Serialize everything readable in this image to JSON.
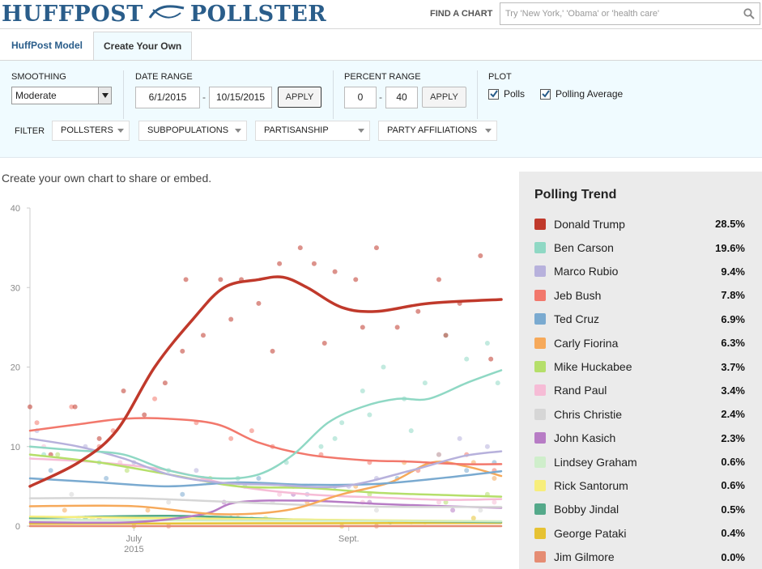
{
  "header": {
    "brand_left": "HUFFPOST",
    "brand_right": "POLLSTER",
    "find_label": "FIND A CHART",
    "search_placeholder": "Try 'New York,' 'Obama' or 'health care'"
  },
  "tabs": [
    {
      "label": "HuffPost Model",
      "active": false
    },
    {
      "label": "Create Your Own",
      "active": true
    }
  ],
  "controls": {
    "smoothing_label": "SMOOTHING",
    "smoothing_value": "Moderate",
    "date_range_label": "DATE RANGE",
    "date_start": "6/1/2015",
    "date_end": "10/15/2015",
    "date_apply": "APPLY",
    "percent_range_label": "PERCENT RANGE",
    "percent_min": "0",
    "percent_max": "40",
    "percent_apply": "APPLY",
    "plot_label": "PLOT",
    "plot_polls": "Polls",
    "plot_average": "Polling Average",
    "filter_label": "FILTER",
    "filters": [
      "POLLSTERS",
      "SUBPOPULATIONS",
      "PARTISANSHIP",
      "PARTY AFFILIATIONS"
    ]
  },
  "intro_text": "Create your own chart to share or embed.",
  "legend": {
    "title": "Polling Trend",
    "items": [
      {
        "name": "Donald Trump",
        "value": "28.5%",
        "color": "#c0392b"
      },
      {
        "name": "Ben Carson",
        "value": "19.6%",
        "color": "#8fd8c4"
      },
      {
        "name": "Marco Rubio",
        "value": "9.4%",
        "color": "#b7b1dc"
      },
      {
        "name": "Jeb Bush",
        "value": "7.8%",
        "color": "#f2786c"
      },
      {
        "name": "Ted Cruz",
        "value": "6.9%",
        "color": "#7aaad0"
      },
      {
        "name": "Carly Fiorina",
        "value": "6.3%",
        "color": "#f6a95a"
      },
      {
        "name": "Mike Huckabee",
        "value": "3.7%",
        "color": "#b5df6a"
      },
      {
        "name": "Rand Paul",
        "value": "3.4%",
        "color": "#f6bcd6"
      },
      {
        "name": "Chris Christie",
        "value": "2.4%",
        "color": "#d6d6d6"
      },
      {
        "name": "John Kasich",
        "value": "2.3%",
        "color": "#b77cc5"
      },
      {
        "name": "Lindsey Graham",
        "value": "0.6%",
        "color": "#cfeecb"
      },
      {
        "name": "Rick Santorum",
        "value": "0.6%",
        "color": "#f7ee7c"
      },
      {
        "name": "Bobby Jindal",
        "value": "0.5%",
        "color": "#54a98a"
      },
      {
        "name": "George Pataki",
        "value": "0.4%",
        "color": "#e6c233"
      },
      {
        "name": "Jim Gilmore",
        "value": "0.0%",
        "color": "#e58c73"
      }
    ]
  },
  "chart_data": {
    "type": "line",
    "ylim": [
      0,
      40
    ],
    "yticks": [
      0,
      10,
      20,
      30,
      40
    ],
    "xlim": [
      "2015-06-01",
      "2015-10-15"
    ],
    "xticks": [
      {
        "label": "July",
        "sub": "2015",
        "date": "2015-07-01"
      },
      {
        "label": "Sept.",
        "sub": "",
        "date": "2015-09-01"
      }
    ],
    "series": [
      {
        "name": "Donald Trump",
        "color": "#c0392b",
        "trend": [
          [
            0,
            5
          ],
          [
            14,
            8
          ],
          [
            25,
            12
          ],
          [
            36,
            20
          ],
          [
            47,
            26
          ],
          [
            56,
            30
          ],
          [
            66,
            31
          ],
          [
            73,
            31.3
          ],
          [
            80,
            30
          ],
          [
            90,
            27.5
          ],
          [
            100,
            27
          ],
          [
            115,
            28
          ],
          [
            136,
            28.5
          ]
        ],
        "polls": [
          [
            0,
            15
          ],
          [
            6,
            9
          ],
          [
            13,
            15
          ],
          [
            20,
            11
          ],
          [
            27,
            17
          ],
          [
            33,
            14
          ],
          [
            39,
            18
          ],
          [
            45,
            31
          ],
          [
            50,
            24
          ],
          [
            55,
            31
          ],
          [
            61,
            31
          ],
          [
            66,
            28
          ],
          [
            72,
            33
          ],
          [
            78,
            35
          ],
          [
            82,
            33
          ],
          [
            88,
            32
          ],
          [
            94,
            31
          ],
          [
            100,
            35
          ],
          [
            106,
            25
          ],
          [
            112,
            27
          ],
          [
            118,
            31
          ],
          [
            124,
            28
          ],
          [
            130,
            34
          ],
          [
            133,
            21
          ],
          [
            120,
            24
          ],
          [
            96,
            25
          ],
          [
            85,
            23
          ],
          [
            70,
            22
          ],
          [
            58,
            26
          ],
          [
            44,
            22
          ]
        ]
      },
      {
        "name": "Ben Carson",
        "color": "#8fd8c4",
        "trend": [
          [
            0,
            10
          ],
          [
            14,
            9.5
          ],
          [
            27,
            9
          ],
          [
            40,
            7
          ],
          [
            54,
            6
          ],
          [
            66,
            6.5
          ],
          [
            76,
            9
          ],
          [
            86,
            13
          ],
          [
            96,
            15
          ],
          [
            106,
            16
          ],
          [
            115,
            16
          ],
          [
            126,
            18
          ],
          [
            136,
            19.6
          ]
        ],
        "polls": [
          [
            4,
            9
          ],
          [
            20,
            8
          ],
          [
            40,
            7
          ],
          [
            60,
            6
          ],
          [
            74,
            8
          ],
          [
            84,
            10
          ],
          [
            90,
            13
          ],
          [
            96,
            17
          ],
          [
            102,
            20
          ],
          [
            108,
            16
          ],
          [
            114,
            18
          ],
          [
            120,
            24
          ],
          [
            126,
            21
          ],
          [
            132,
            23
          ],
          [
            135,
            18
          ],
          [
            98,
            14
          ],
          [
            88,
            11
          ],
          [
            110,
            12
          ]
        ]
      },
      {
        "name": "Marco Rubio",
        "color": "#b7b1dc",
        "trend": [
          [
            0,
            11
          ],
          [
            14,
            10
          ],
          [
            27,
            8.5
          ],
          [
            40,
            6.5
          ],
          [
            54,
            5.5
          ],
          [
            70,
            5.2
          ],
          [
            90,
            5
          ],
          [
            110,
            7
          ],
          [
            125,
            8.8
          ],
          [
            136,
            9.4
          ]
        ],
        "polls": [
          [
            2,
            12
          ],
          [
            16,
            10
          ],
          [
            30,
            8
          ],
          [
            48,
            7
          ],
          [
            62,
            5
          ],
          [
            80,
            4
          ],
          [
            100,
            6
          ],
          [
            118,
            9
          ],
          [
            132,
            10
          ],
          [
            124,
            11
          ],
          [
            92,
            5
          ]
        ]
      },
      {
        "name": "Jeb Bush",
        "color": "#f2786c",
        "trend": [
          [
            0,
            12
          ],
          [
            14,
            12.8
          ],
          [
            27,
            13.5
          ],
          [
            40,
            13.5
          ],
          [
            54,
            12.8
          ],
          [
            66,
            10.5
          ],
          [
            80,
            9
          ],
          [
            96,
            8.3
          ],
          [
            110,
            8.1
          ],
          [
            124,
            7.8
          ],
          [
            136,
            7.8
          ]
        ],
        "polls": [
          [
            2,
            13
          ],
          [
            12,
            15
          ],
          [
            24,
            12
          ],
          [
            36,
            16
          ],
          [
            48,
            13
          ],
          [
            58,
            11
          ],
          [
            70,
            10
          ],
          [
            84,
            9
          ],
          [
            98,
            8
          ],
          [
            112,
            7
          ],
          [
            126,
            9
          ],
          [
            134,
            7
          ],
          [
            20,
            10
          ],
          [
            64,
            12
          ]
        ]
      },
      {
        "name": "Ted Cruz",
        "color": "#7aaad0",
        "trend": [
          [
            0,
            6
          ],
          [
            20,
            5.5
          ],
          [
            40,
            5
          ],
          [
            60,
            5.5
          ],
          [
            80,
            5.2
          ],
          [
            100,
            5.3
          ],
          [
            120,
            6.1
          ],
          [
            136,
            6.9
          ]
        ],
        "polls": [
          [
            6,
            7
          ],
          [
            22,
            6
          ],
          [
            44,
            4
          ],
          [
            66,
            6
          ],
          [
            88,
            5
          ],
          [
            106,
            6
          ],
          [
            126,
            7
          ],
          [
            134,
            8
          ]
        ]
      },
      {
        "name": "Carly Fiorina",
        "color": "#f6a95a",
        "trend": [
          [
            0,
            2.5
          ],
          [
            30,
            2.5
          ],
          [
            54,
            1.5
          ],
          [
            74,
            2
          ],
          [
            90,
            4
          ],
          [
            104,
            5.5
          ],
          [
            116,
            8
          ],
          [
            126,
            7.5
          ],
          [
            136,
            6.3
          ]
        ],
        "polls": [
          [
            10,
            2
          ],
          [
            34,
            2
          ],
          [
            60,
            1
          ],
          [
            80,
            3
          ],
          [
            94,
            5
          ],
          [
            108,
            8
          ],
          [
            118,
            9
          ],
          [
            128,
            8
          ],
          [
            134,
            6
          ]
        ]
      },
      {
        "name": "Mike Huckabee",
        "color": "#b5df6a",
        "trend": [
          [
            0,
            9
          ],
          [
            20,
            8
          ],
          [
            40,
            6.5
          ],
          [
            60,
            5
          ],
          [
            80,
            4.8
          ],
          [
            100,
            4.2
          ],
          [
            120,
            3.9
          ],
          [
            136,
            3.7
          ]
        ],
        "polls": [
          [
            8,
            9
          ],
          [
            28,
            7
          ],
          [
            52,
            6
          ],
          [
            76,
            5
          ],
          [
            98,
            4
          ],
          [
            120,
            3
          ],
          [
            132,
            4
          ]
        ]
      },
      {
        "name": "Rand Paul",
        "color": "#f6bcd6",
        "trend": [
          [
            0,
            8.5
          ],
          [
            20,
            8
          ],
          [
            40,
            7
          ],
          [
            60,
            5
          ],
          [
            80,
            4
          ],
          [
            100,
            3.6
          ],
          [
            120,
            3.3
          ],
          [
            136,
            3.4
          ]
        ],
        "polls": [
          [
            4,
            10
          ],
          [
            26,
            8
          ],
          [
            50,
            6
          ],
          [
            72,
            4
          ],
          [
            96,
            3
          ],
          [
            118,
            3
          ],
          [
            134,
            3
          ]
        ]
      },
      {
        "name": "Chris Christie",
        "color": "#d6d6d6",
        "trend": [
          [
            0,
            3.5
          ],
          [
            30,
            3.5
          ],
          [
            60,
            3
          ],
          [
            90,
            2.5
          ],
          [
            120,
            2.4
          ],
          [
            136,
            2.4
          ]
        ],
        "polls": [
          [
            12,
            4
          ],
          [
            40,
            3
          ],
          [
            70,
            3
          ],
          [
            100,
            2
          ],
          [
            130,
            2
          ]
        ]
      },
      {
        "name": "John Kasich",
        "color": "#b77cc5",
        "trend": [
          [
            0,
            0.5
          ],
          [
            30,
            0.5
          ],
          [
            50,
            1.5
          ],
          [
            60,
            3
          ],
          [
            80,
            3.2
          ],
          [
            100,
            2.8
          ],
          [
            120,
            2.5
          ],
          [
            136,
            2.3
          ]
        ],
        "polls": [
          [
            20,
            1
          ],
          [
            56,
            3
          ],
          [
            76,
            4
          ],
          [
            98,
            3
          ],
          [
            122,
            2
          ]
        ]
      },
      {
        "name": "Lindsey Graham",
        "color": "#cfeecb",
        "trend": [
          [
            0,
            0.8
          ],
          [
            60,
            0.7
          ],
          [
            136,
            0.6
          ]
        ],
        "polls": [
          [
            14,
            1
          ],
          [
            64,
            1
          ],
          [
            110,
            0.5
          ]
        ]
      },
      {
        "name": "Rick Santorum",
        "color": "#f7ee7c",
        "trend": [
          [
            0,
            1.2
          ],
          [
            60,
            0.9
          ],
          [
            136,
            0.6
          ]
        ],
        "polls": [
          [
            18,
            1
          ],
          [
            68,
            1
          ],
          [
            114,
            0.5
          ]
        ]
      },
      {
        "name": "Bobby Jindal",
        "color": "#54a98a",
        "trend": [
          [
            0,
            1
          ],
          [
            40,
            1.3
          ],
          [
            80,
            0.8
          ],
          [
            136,
            0.5
          ]
        ],
        "polls": [
          [
            16,
            1
          ],
          [
            58,
            1
          ],
          [
            104,
            0.5
          ]
        ]
      },
      {
        "name": "George Pataki",
        "color": "#e6c233",
        "trend": [
          [
            0,
            0.3
          ],
          [
            136,
            0.4
          ]
        ],
        "polls": [
          [
            30,
            0
          ],
          [
            90,
            0
          ],
          [
            128,
            1
          ]
        ]
      },
      {
        "name": "Jim Gilmore",
        "color": "#e58c73",
        "trend": [
          [
            0,
            0
          ],
          [
            136,
            0
          ]
        ],
        "polls": [
          [
            40,
            0
          ],
          [
            100,
            0
          ]
        ]
      }
    ]
  }
}
